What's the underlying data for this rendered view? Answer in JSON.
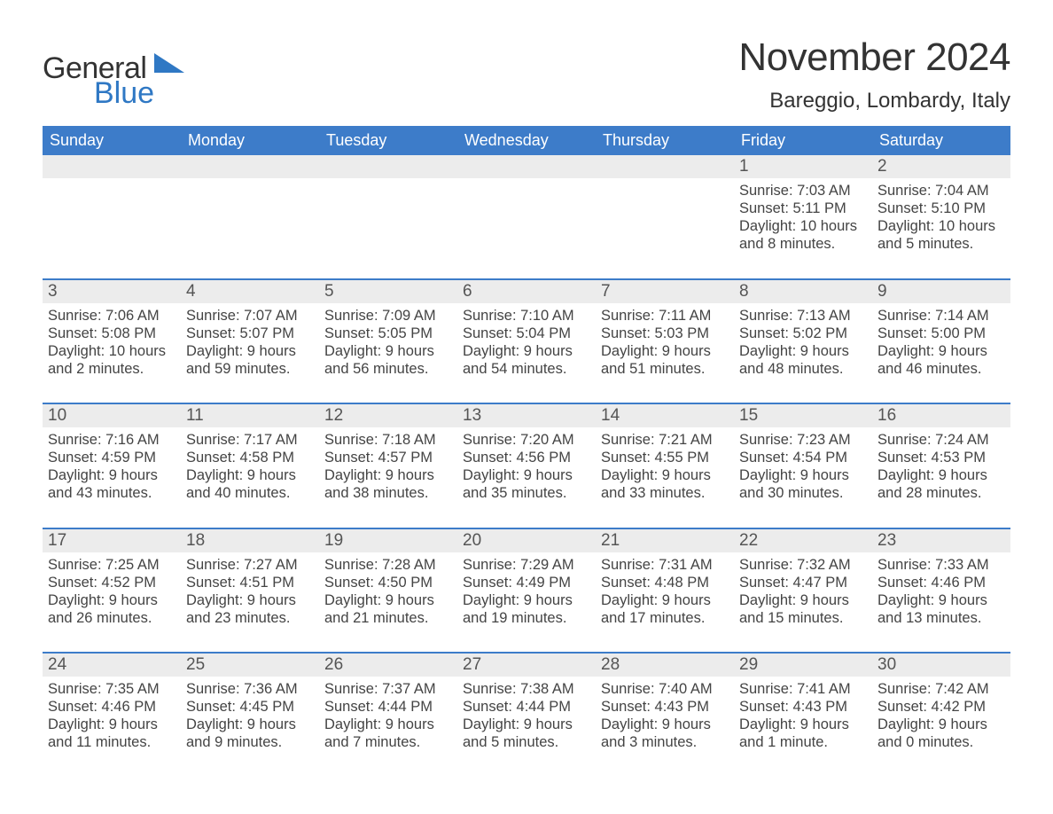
{
  "brand": {
    "word1": "General",
    "word2": "Blue",
    "word1_color": "#333333",
    "word2_color": "#2f78c4",
    "triangle_color": "#2f78c4"
  },
  "title": "November 2024",
  "location": "Bareggio, Lombardy, Italy",
  "colors": {
    "header_bg": "#3d7cc9",
    "header_text": "#ffffff",
    "week_top_border": "#3d7cc9",
    "daynum_strip_bg": "#ececec",
    "body_text": "#444444",
    "page_bg": "#ffffff"
  },
  "day_headers": [
    "Sunday",
    "Monday",
    "Tuesday",
    "Wednesday",
    "Thursday",
    "Friday",
    "Saturday"
  ],
  "weeks": [
    [
      {
        "empty": true
      },
      {
        "empty": true
      },
      {
        "empty": true
      },
      {
        "empty": true
      },
      {
        "empty": true
      },
      {
        "n": "1",
        "sunrise": "Sunrise: 7:03 AM",
        "sunset": "Sunset: 5:11 PM",
        "daylight": "Daylight: 10 hours and 8 minutes."
      },
      {
        "n": "2",
        "sunrise": "Sunrise: 7:04 AM",
        "sunset": "Sunset: 5:10 PM",
        "daylight": "Daylight: 10 hours and 5 minutes."
      }
    ],
    [
      {
        "n": "3",
        "sunrise": "Sunrise: 7:06 AM",
        "sunset": "Sunset: 5:08 PM",
        "daylight": "Daylight: 10 hours and 2 minutes."
      },
      {
        "n": "4",
        "sunrise": "Sunrise: 7:07 AM",
        "sunset": "Sunset: 5:07 PM",
        "daylight": "Daylight: 9 hours and 59 minutes."
      },
      {
        "n": "5",
        "sunrise": "Sunrise: 7:09 AM",
        "sunset": "Sunset: 5:05 PM",
        "daylight": "Daylight: 9 hours and 56 minutes."
      },
      {
        "n": "6",
        "sunrise": "Sunrise: 7:10 AM",
        "sunset": "Sunset: 5:04 PM",
        "daylight": "Daylight: 9 hours and 54 minutes."
      },
      {
        "n": "7",
        "sunrise": "Sunrise: 7:11 AM",
        "sunset": "Sunset: 5:03 PM",
        "daylight": "Daylight: 9 hours and 51 minutes."
      },
      {
        "n": "8",
        "sunrise": "Sunrise: 7:13 AM",
        "sunset": "Sunset: 5:02 PM",
        "daylight": "Daylight: 9 hours and 48 minutes."
      },
      {
        "n": "9",
        "sunrise": "Sunrise: 7:14 AM",
        "sunset": "Sunset: 5:00 PM",
        "daylight": "Daylight: 9 hours and 46 minutes."
      }
    ],
    [
      {
        "n": "10",
        "sunrise": "Sunrise: 7:16 AM",
        "sunset": "Sunset: 4:59 PM",
        "daylight": "Daylight: 9 hours and 43 minutes."
      },
      {
        "n": "11",
        "sunrise": "Sunrise: 7:17 AM",
        "sunset": "Sunset: 4:58 PM",
        "daylight": "Daylight: 9 hours and 40 minutes."
      },
      {
        "n": "12",
        "sunrise": "Sunrise: 7:18 AM",
        "sunset": "Sunset: 4:57 PM",
        "daylight": "Daylight: 9 hours and 38 minutes."
      },
      {
        "n": "13",
        "sunrise": "Sunrise: 7:20 AM",
        "sunset": "Sunset: 4:56 PM",
        "daylight": "Daylight: 9 hours and 35 minutes."
      },
      {
        "n": "14",
        "sunrise": "Sunrise: 7:21 AM",
        "sunset": "Sunset: 4:55 PM",
        "daylight": "Daylight: 9 hours and 33 minutes."
      },
      {
        "n": "15",
        "sunrise": "Sunrise: 7:23 AM",
        "sunset": "Sunset: 4:54 PM",
        "daylight": "Daylight: 9 hours and 30 minutes."
      },
      {
        "n": "16",
        "sunrise": "Sunrise: 7:24 AM",
        "sunset": "Sunset: 4:53 PM",
        "daylight": "Daylight: 9 hours and 28 minutes."
      }
    ],
    [
      {
        "n": "17",
        "sunrise": "Sunrise: 7:25 AM",
        "sunset": "Sunset: 4:52 PM",
        "daylight": "Daylight: 9 hours and 26 minutes."
      },
      {
        "n": "18",
        "sunrise": "Sunrise: 7:27 AM",
        "sunset": "Sunset: 4:51 PM",
        "daylight": "Daylight: 9 hours and 23 minutes."
      },
      {
        "n": "19",
        "sunrise": "Sunrise: 7:28 AM",
        "sunset": "Sunset: 4:50 PM",
        "daylight": "Daylight: 9 hours and 21 minutes."
      },
      {
        "n": "20",
        "sunrise": "Sunrise: 7:29 AM",
        "sunset": "Sunset: 4:49 PM",
        "daylight": "Daylight: 9 hours and 19 minutes."
      },
      {
        "n": "21",
        "sunrise": "Sunrise: 7:31 AM",
        "sunset": "Sunset: 4:48 PM",
        "daylight": "Daylight: 9 hours and 17 minutes."
      },
      {
        "n": "22",
        "sunrise": "Sunrise: 7:32 AM",
        "sunset": "Sunset: 4:47 PM",
        "daylight": "Daylight: 9 hours and 15 minutes."
      },
      {
        "n": "23",
        "sunrise": "Sunrise: 7:33 AM",
        "sunset": "Sunset: 4:46 PM",
        "daylight": "Daylight: 9 hours and 13 minutes."
      }
    ],
    [
      {
        "n": "24",
        "sunrise": "Sunrise: 7:35 AM",
        "sunset": "Sunset: 4:46 PM",
        "daylight": "Daylight: 9 hours and 11 minutes."
      },
      {
        "n": "25",
        "sunrise": "Sunrise: 7:36 AM",
        "sunset": "Sunset: 4:45 PM",
        "daylight": "Daylight: 9 hours and 9 minutes."
      },
      {
        "n": "26",
        "sunrise": "Sunrise: 7:37 AM",
        "sunset": "Sunset: 4:44 PM",
        "daylight": "Daylight: 9 hours and 7 minutes."
      },
      {
        "n": "27",
        "sunrise": "Sunrise: 7:38 AM",
        "sunset": "Sunset: 4:44 PM",
        "daylight": "Daylight: 9 hours and 5 minutes."
      },
      {
        "n": "28",
        "sunrise": "Sunrise: 7:40 AM",
        "sunset": "Sunset: 4:43 PM",
        "daylight": "Daylight: 9 hours and 3 minutes."
      },
      {
        "n": "29",
        "sunrise": "Sunrise: 7:41 AM",
        "sunset": "Sunset: 4:43 PM",
        "daylight": "Daylight: 9 hours and 1 minute."
      },
      {
        "n": "30",
        "sunrise": "Sunrise: 7:42 AM",
        "sunset": "Sunset: 4:42 PM",
        "daylight": "Daylight: 9 hours and 0 minutes."
      }
    ]
  ]
}
